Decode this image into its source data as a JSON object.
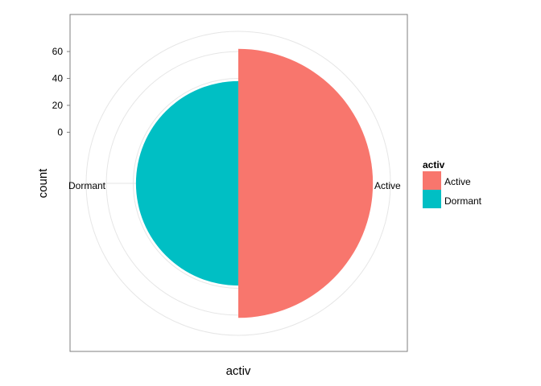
{
  "chart_data": {
    "type": "pie",
    "coord": "polar",
    "categories": [
      "Active",
      "Dormant"
    ],
    "values": [
      62,
      38
    ],
    "colors": [
      "#F8766D",
      "#00BFC4"
    ],
    "xlabel": "activ",
    "ylabel": "count",
    "yticks": [
      0,
      20,
      40,
      60
    ],
    "ylim": [
      -38,
      75
    ],
    "grid": true,
    "legend": {
      "title": "activ",
      "placement": "right",
      "entries": [
        "Active",
        "Dormant"
      ]
    }
  }
}
